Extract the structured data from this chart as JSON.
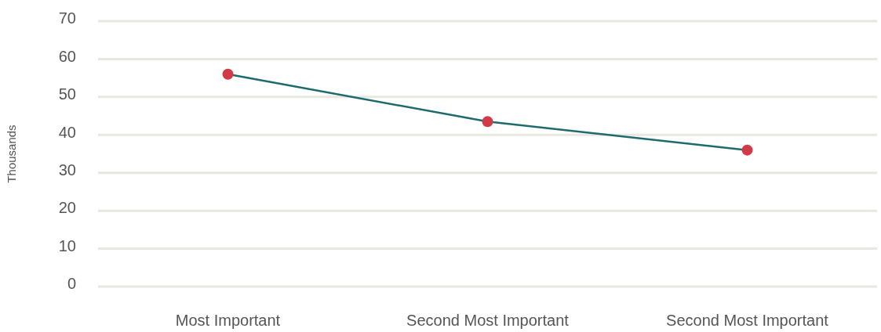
{
  "chart_data": {
    "type": "line",
    "ylabel": "Thousands",
    "categories": [
      "Most Important",
      "Second Most Important",
      "Second Most Important"
    ],
    "series": [
      {
        "color": "#1e6b6e",
        "colors": [
          "#d13b47",
          "#d13b47",
          "#d13b47"
        ],
        "values": [
          56,
          43.5,
          36
        ]
      }
    ],
    "ylim": [
      0,
      70
    ],
    "yticks": [
      0,
      10,
      20,
      30,
      40,
      50,
      60,
      70
    ],
    "grid": "y",
    "marker": "circle"
  }
}
